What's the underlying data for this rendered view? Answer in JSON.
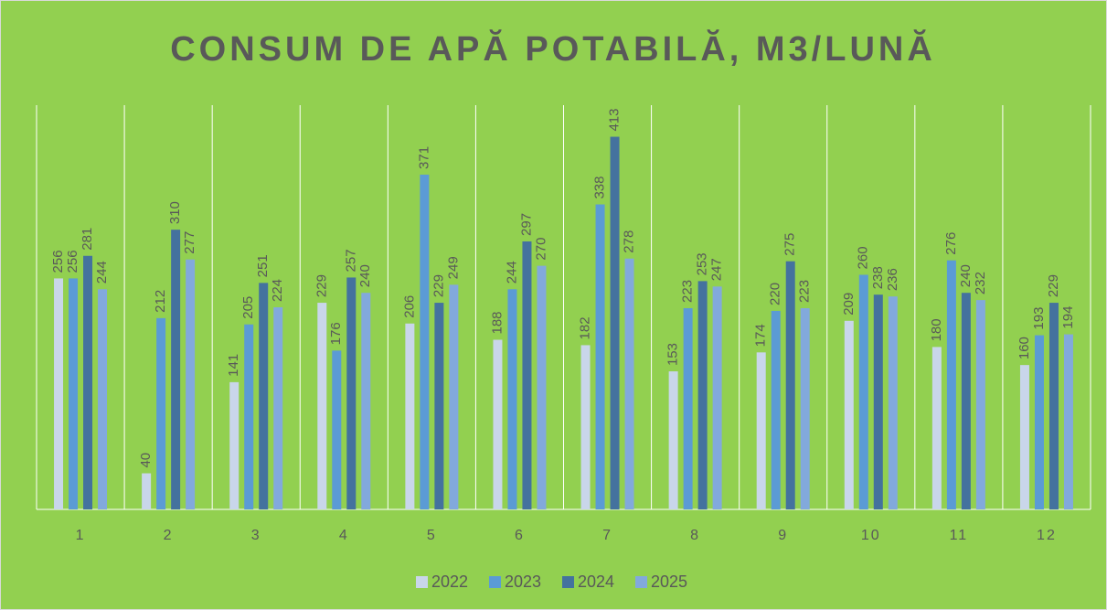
{
  "chart_data": {
    "type": "bar",
    "title": "CONSUM DE APĂ POTABILĂ, M3/LUNĂ",
    "categories": [
      "1",
      "2",
      "3",
      "4",
      "5",
      "6",
      "7",
      "8",
      "9",
      "10",
      "11",
      "12"
    ],
    "series": [
      {
        "name": "2022",
        "color": "#c9d6ea",
        "values": [
          256,
          40,
          141,
          229,
          206,
          188,
          182,
          153,
          174,
          209,
          180,
          160
        ]
      },
      {
        "name": "2023",
        "color": "#5b9bd5",
        "values": [
          256,
          212,
          205,
          176,
          371,
          244,
          338,
          223,
          220,
          260,
          276,
          193
        ]
      },
      {
        "name": "2024",
        "color": "#44729e",
        "values": [
          281,
          310,
          251,
          257,
          229,
          297,
          413,
          253,
          275,
          238,
          240,
          229
        ]
      },
      {
        "name": "2025",
        "color": "#82a9dc",
        "values": [
          244,
          277,
          224,
          240,
          249,
          270,
          278,
          247,
          223,
          236,
          232,
          194
        ]
      }
    ],
    "ylim": [
      0,
      448
    ],
    "legend": "bottom"
  }
}
